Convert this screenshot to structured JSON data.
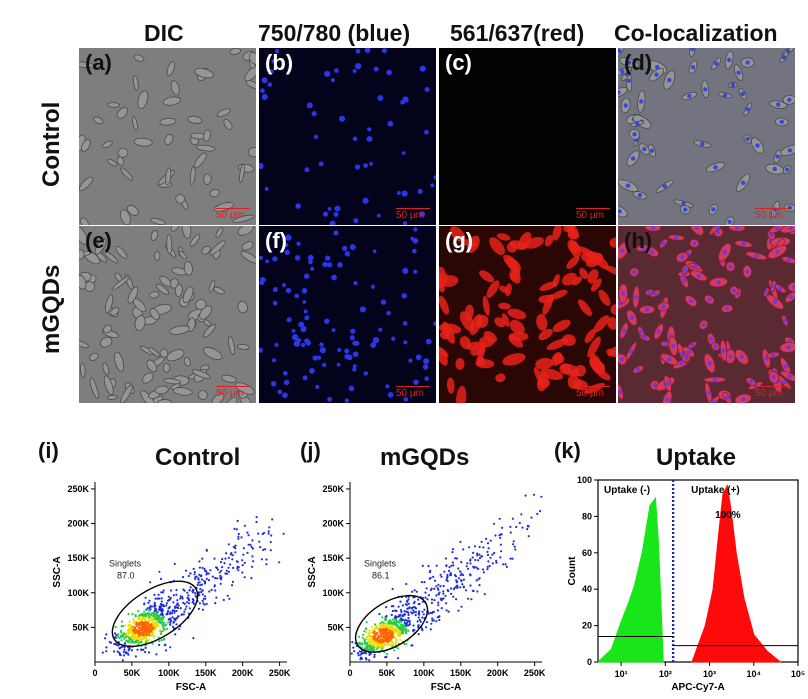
{
  "columns": [
    "DIC",
    "750/780 (blue)",
    "561/637(red)",
    "Co-localization"
  ],
  "rows": [
    "Control",
    "mGQDs"
  ],
  "panels": [
    {
      "label": "(a)",
      "scale": "50 μm",
      "type": "dic"
    },
    {
      "label": "(b)",
      "scale": "50 μm",
      "type": "blue"
    },
    {
      "label": "(c)",
      "scale": "50 μm",
      "type": "dark"
    },
    {
      "label": "(d)",
      "scale": "50 μm",
      "type": "coloc-blue"
    },
    {
      "label": "(e)",
      "scale": "50 μm",
      "type": "dic"
    },
    {
      "label": "(f)",
      "scale": "50 μm",
      "type": "blue"
    },
    {
      "label": "(g)",
      "scale": "50 μm",
      "type": "red"
    },
    {
      "label": "(h)",
      "scale": "50 μm",
      "type": "coloc-red"
    }
  ],
  "colors": {
    "blue_cells": "#2a36e8",
    "red_cells": "#e8221a",
    "histogram_neg": "#19e619",
    "histogram_pos": "#ff0a0a",
    "gate": "#000000",
    "threshold": "#1a2abf"
  },
  "flow": [
    {
      "label": "(i)",
      "title": "Control",
      "gate_name": "Singlets",
      "gate_value": "87.0",
      "xlabel": "FSC-A",
      "ylabel": "SSC-A",
      "xticks": [
        "0",
        "50K",
        "100K",
        "150K",
        "200K",
        "250K"
      ],
      "yticks": [
        "50K",
        "100K",
        "150K",
        "200K",
        "250K"
      ]
    },
    {
      "label": "(j)",
      "title": "mGQDs",
      "gate_name": "Singlets",
      "gate_value": "86.1",
      "xlabel": "FSC-A",
      "ylabel": "SSC-A",
      "xticks": [
        "0",
        "50K",
        "100K",
        "150K",
        "200K",
        "250K"
      ],
      "yticks": [
        "50K",
        "100K",
        "150K",
        "200K",
        "250K"
      ]
    }
  ],
  "chart_data": [
    {
      "type": "scatter",
      "title": "Control",
      "xlabel": "FSC-A",
      "ylabel": "SSC-A",
      "xlim": [
        0,
        260000
      ],
      "ylim": [
        0,
        260000
      ],
      "gate": {
        "name": "Singlets",
        "percent": 87.0
      },
      "population_center": [
        65000,
        48000
      ]
    },
    {
      "type": "scatter",
      "title": "mGQDs",
      "xlabel": "FSC-A",
      "ylabel": "SSC-A",
      "xlim": [
        0,
        260000
      ],
      "ylim": [
        0,
        260000
      ],
      "gate": {
        "name": "Singlets",
        "percent": 86.1
      },
      "population_center": [
        45000,
        38000
      ]
    },
    {
      "type": "area",
      "title": "Uptake",
      "xlabel": "APC-Cy7-A",
      "ylabel": "Count",
      "xscale": "log",
      "xlim": [
        3,
        100000
      ],
      "ylim": [
        0,
        100
      ],
      "xticks": [
        "10¹",
        "10²",
        "10³",
        "10⁴",
        "10⁵"
      ],
      "yticks": [
        "0",
        "20",
        "40",
        "60",
        "80",
        "100"
      ],
      "gates": [
        {
          "name": "Uptake (-)"
        },
        {
          "name": "Uptake (+)",
          "percent": "100%"
        }
      ],
      "series": [
        {
          "x": [
            3,
            6,
            10,
            15,
            20,
            30,
            45,
            60,
            70,
            80,
            90
          ],
          "y": [
            0,
            7,
            22,
            33,
            42,
            60,
            86,
            90,
            65,
            30,
            0
          ]
        },
        {
          "x": [
            400,
            800,
            1200,
            1600,
            2000,
            2500,
            3000,
            4000,
            6000,
            10000,
            20000,
            40000
          ],
          "y": [
            0,
            20,
            40,
            70,
            92,
            97,
            85,
            60,
            35,
            15,
            6,
            0
          ]
        }
      ]
    }
  ]
}
